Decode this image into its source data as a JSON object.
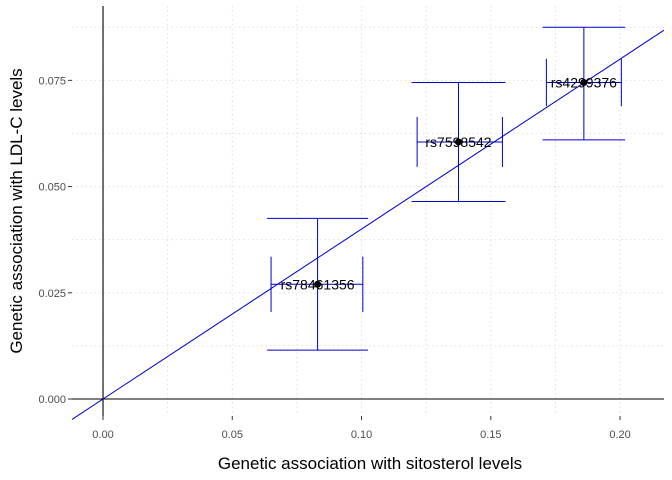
{
  "chart_data": {
    "type": "scatter",
    "xlabel": "Genetic association with sitosterol levels",
    "ylabel": "Genetic association with LDL-C levels",
    "xlim": [
      -0.012,
      0.217
    ],
    "ylim": [
      -0.004,
      0.0925
    ],
    "x_ticks": [
      {
        "value": 0.0,
        "label": "0.00"
      },
      {
        "value": 0.05,
        "label": "0.05"
      },
      {
        "value": 0.1,
        "label": "0.10"
      },
      {
        "value": 0.15,
        "label": "0.15"
      },
      {
        "value": 0.2,
        "label": "0.20"
      }
    ],
    "y_ticks": [
      {
        "value": 0.0,
        "label": "0.000"
      },
      {
        "value": 0.025,
        "label": "0.025"
      },
      {
        "value": 0.05,
        "label": "0.050"
      },
      {
        "value": 0.075,
        "label": "0.075"
      }
    ],
    "grid": "dotted minor and major, light gray",
    "points": [
      {
        "label": "rs78461356",
        "x": 0.083,
        "y": 0.027,
        "x_lo": 0.065,
        "x_hi": 0.1005,
        "y_lo": 0.0115,
        "y_hi": 0.0425
      },
      {
        "label": "rs7598542",
        "x": 0.1375,
        "y": 0.0605,
        "x_lo": 0.1215,
        "x_hi": 0.1545,
        "y_lo": 0.0465,
        "y_hi": 0.0745
      },
      {
        "label": "rs4299376",
        "x": 0.186,
        "y": 0.0745,
        "x_lo": 0.1715,
        "x_hi": 0.2005,
        "y_lo": 0.061,
        "y_hi": 0.0875
      }
    ],
    "fit_line": {
      "slope": 0.4,
      "intercept": 0.0
    },
    "colors": {
      "error_bars": "#0000cd",
      "fit_line": "#0000cd",
      "points": "#000000",
      "axes": "#000000",
      "grid": "#e0e0e0"
    }
  }
}
